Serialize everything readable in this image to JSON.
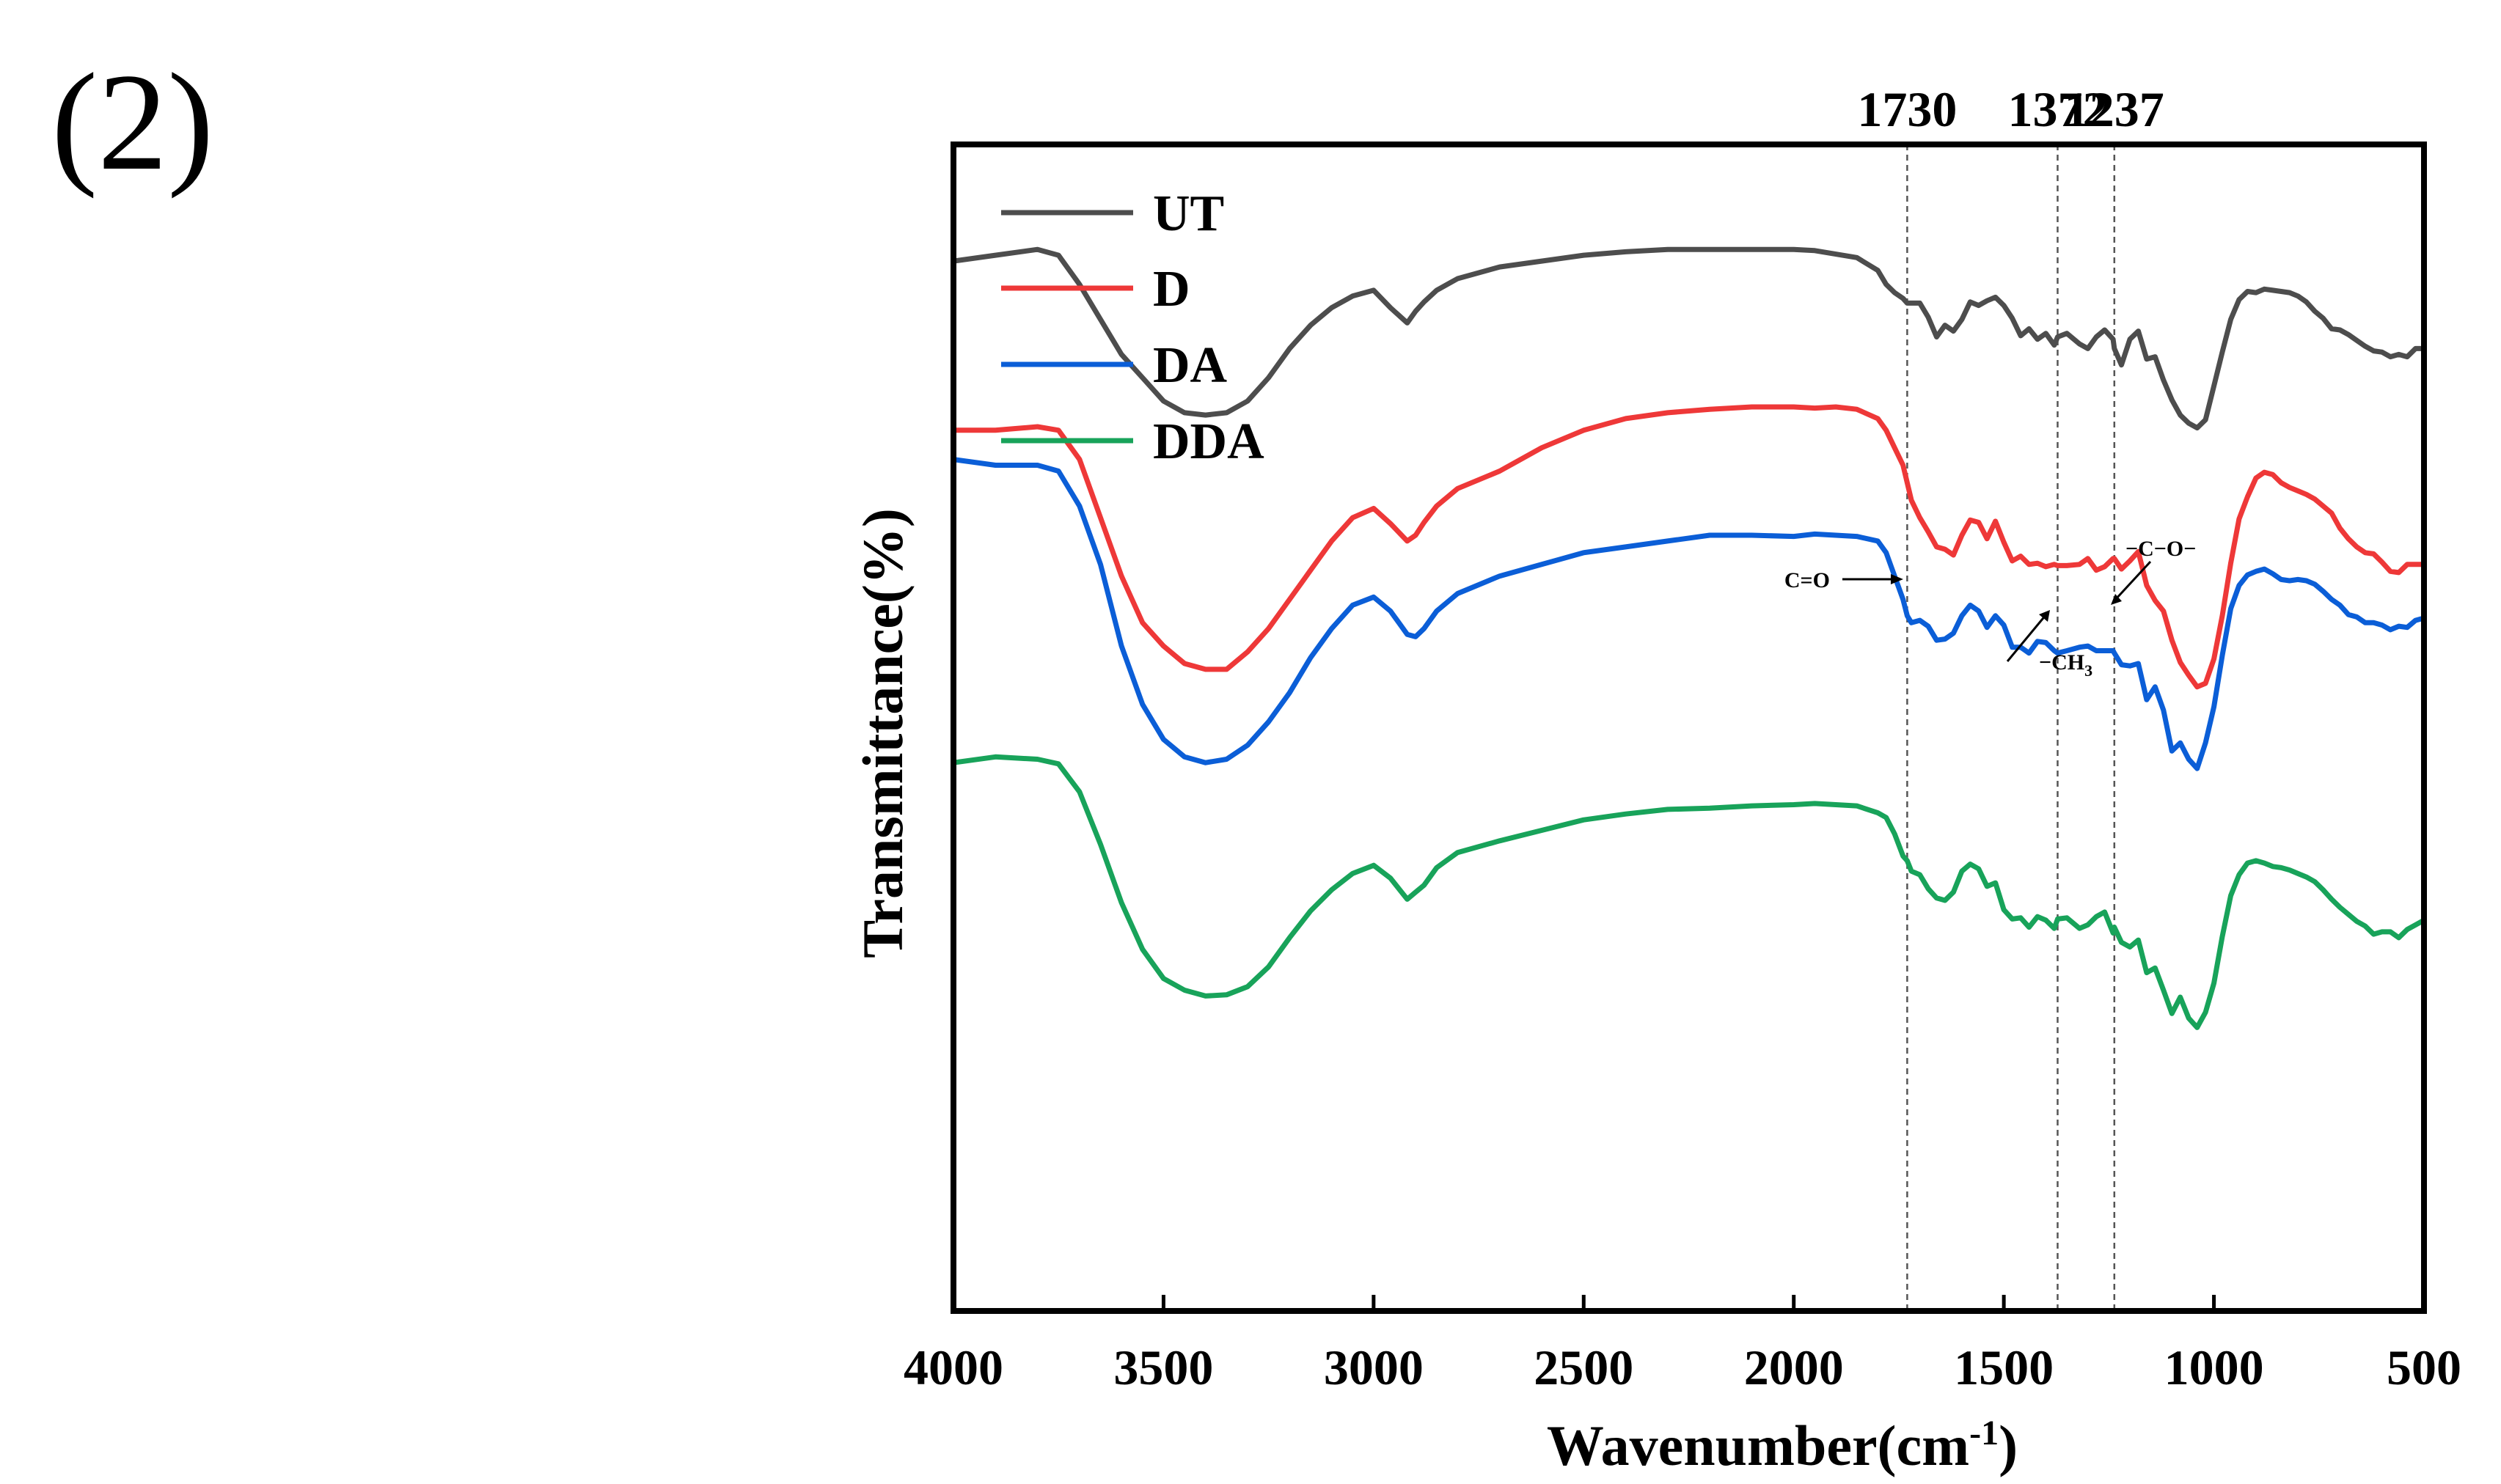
{
  "panel_label": "(2)",
  "chart_data": {
    "type": "line",
    "title": "",
    "xlabel": "Wavenumber(cm",
    "xlabel_sup": "-1",
    "xlabel_suffix": ")",
    "ylabel": "Transmittance(%)",
    "xlim": [
      4000,
      500
    ],
    "x_reversed": true,
    "xticks": [
      "4000",
      "3500",
      "3000",
      "2500",
      "2000",
      "1500",
      "1000",
      "500"
    ],
    "ylim": [
      0,
      100
    ],
    "y_ticks_shown": false,
    "grid": false,
    "legend_position": "top-left",
    "reference_lines": [
      {
        "x": 1730,
        "label": "1730"
      },
      {
        "x": 1372,
        "label": "1372"
      },
      {
        "x": 1237,
        "label": "1237"
      }
    ],
    "annotations": [
      {
        "text": "C=O",
        "x": 1730,
        "series": "UT"
      },
      {
        "text": "−CH",
        "sub": "3",
        "x": 1372,
        "series": "UT"
      },
      {
        "text": "−C−O−",
        "x": 1237,
        "series": "UT"
      }
    ],
    "x": [
      4000,
      3900,
      3800,
      3750,
      3700,
      3650,
      3600,
      3550,
      3500,
      3450,
      3400,
      3350,
      3300,
      3250,
      3200,
      3150,
      3100,
      3050,
      3000,
      2960,
      2920,
      2900,
      2880,
      2850,
      2800,
      2700,
      2600,
      2500,
      2400,
      2300,
      2200,
      2100,
      2000,
      1950,
      1900,
      1850,
      1800,
      1780,
      1760,
      1740,
      1730,
      1720,
      1700,
      1680,
      1660,
      1640,
      1620,
      1600,
      1580,
      1560,
      1540,
      1520,
      1500,
      1480,
      1460,
      1440,
      1420,
      1400,
      1380,
      1372,
      1350,
      1320,
      1300,
      1280,
      1260,
      1240,
      1237,
      1220,
      1200,
      1180,
      1160,
      1140,
      1120,
      1100,
      1080,
      1060,
      1040,
      1020,
      1000,
      980,
      960,
      940,
      920,
      900,
      880,
      860,
      840,
      820,
      800,
      780,
      760,
      740,
      720,
      700,
      680,
      660,
      640,
      620,
      600,
      580,
      560,
      540,
      520,
      500
    ],
    "series": [
      {
        "name": "UT",
        "color": "#4d4d4d",
        "values": [
          90,
          90.5,
          91,
          90.5,
          88,
          85,
          82,
          80,
          78,
          77,
          76.8,
          77,
          78,
          80,
          82.5,
          84.5,
          86,
          87,
          87.5,
          86,
          84.7,
          85.7,
          86.5,
          87.5,
          88.5,
          89.5,
          90,
          90.5,
          90.8,
          91,
          91,
          91,
          91,
          90.9,
          90.6,
          90.3,
          89.2,
          88,
          87.3,
          86.8,
          86.4,
          86.4,
          86.4,
          85.2,
          83.5,
          84.5,
          84,
          85,
          86.5,
          86.2,
          86.6,
          86.9,
          86.2,
          85.1,
          83.6,
          84.2,
          83.3,
          83.8,
          82.8,
          83.5,
          83.8,
          82.9,
          82.5,
          83.5,
          84.1,
          83.3,
          82.5,
          81.1,
          83.3,
          84,
          81.6,
          81.8,
          79.8,
          78.1,
          76.8,
          76.1,
          75.7,
          76.4,
          79.3,
          82.2,
          85,
          86.7,
          87.4,
          87.3,
          87.6,
          87.5,
          87.4,
          87.3,
          87,
          86.5,
          85.7,
          85.1,
          84.2,
          84.1,
          83.7,
          83.2,
          82.7,
          82.3,
          82.2,
          81.8,
          82,
          81.8,
          82.5,
          82.5
        ]
      },
      {
        "name": "D",
        "color": "#ee3838",
        "values": [
          75.5,
          75.5,
          75.8,
          75.5,
          73,
          68,
          63,
          59,
          57,
          55.5,
          55,
          55,
          56.5,
          58.5,
          61,
          63.5,
          66,
          68,
          68.8,
          67.5,
          66,
          66.5,
          67.6,
          69,
          70.5,
          72,
          74,
          75.5,
          76.5,
          77,
          77.3,
          77.5,
          77.5,
          77.4,
          77.5,
          77.3,
          76.5,
          75.5,
          74,
          72.5,
          71,
          69.5,
          68,
          66.8,
          65.5,
          65.3,
          64.8,
          66.5,
          67.8,
          67.6,
          66.2,
          67.7,
          65.9,
          64.3,
          64.7,
          64,
          64.1,
          63.8,
          64,
          63.9,
          63.9,
          64,
          64.5,
          63.5,
          63.8,
          64.5,
          64.5,
          63.6,
          64.3,
          65.1,
          62.2,
          60.9,
          60,
          57.5,
          55.6,
          54.5,
          53.5,
          53.8,
          55.9,
          59.6,
          64.1,
          67.9,
          69.8,
          71.4,
          71.9,
          71.7,
          71,
          70.6,
          70.3,
          70,
          69.6,
          69,
          68.4,
          67.1,
          66.2,
          65.5,
          65,
          64.9,
          64.2,
          63.4,
          63.3,
          64,
          64,
          64
        ]
      },
      {
        "name": "DA",
        "color": "#0b5ed7",
        "values": [
          73,
          72.5,
          72.5,
          72,
          69,
          64,
          57,
          52,
          49,
          47.5,
          47,
          47.3,
          48.5,
          50.5,
          53,
          56,
          58.5,
          60.5,
          61.2,
          60,
          58,
          57.8,
          58.5,
          60,
          61.5,
          63,
          64,
          65,
          65.5,
          66,
          66.5,
          66.5,
          66.4,
          66.6,
          66.5,
          66.4,
          66,
          65,
          63,
          61,
          59.6,
          59,
          59.2,
          58.7,
          57.5,
          57.6,
          58.1,
          59.6,
          60.5,
          60,
          58.6,
          59.6,
          58.8,
          56.9,
          56.9,
          56.4,
          57.4,
          57.3,
          56.6,
          56.4,
          56.6,
          56.9,
          57,
          56.6,
          56.6,
          56.6,
          56.4,
          55.4,
          55.3,
          55.5,
          52.4,
          53.5,
          51.5,
          48,
          48.7,
          47.3,
          46.5,
          48.7,
          51.8,
          56.2,
          60.2,
          62.2,
          63.1,
          63.4,
          63.6,
          63.2,
          62.7,
          62.6,
          62.7,
          62.6,
          62.3,
          61.7,
          61,
          60.5,
          59.7,
          59.5,
          59,
          59,
          58.8,
          58.4,
          58.7,
          58.6,
          59.2,
          59.4
        ]
      },
      {
        "name": "DDA",
        "color": "#18a35a",
        "values": [
          47,
          47.5,
          47.3,
          46.9,
          44.5,
          40,
          35,
          31,
          28.5,
          27.5,
          27,
          27.1,
          27.8,
          29.5,
          32,
          34.3,
          36.1,
          37.5,
          38.2,
          37.1,
          35.3,
          35.9,
          36.5,
          38,
          39.3,
          40.3,
          41.2,
          42.1,
          42.6,
          43,
          43.1,
          43.3,
          43.4,
          43.5,
          43.4,
          43.3,
          42.7,
          42.3,
          40.9,
          39,
          38.6,
          37.7,
          37.4,
          36.2,
          35.4,
          35.2,
          35.9,
          37.7,
          38.3,
          37.9,
          36.4,
          36.7,
          34.4,
          33.6,
          33.7,
          32.9,
          33.8,
          33.5,
          32.8,
          33.6,
          33.7,
          32.8,
          33.1,
          33.8,
          34.2,
          32.4,
          32.9,
          31.6,
          31.2,
          31.8,
          29,
          29.4,
          27.5,
          25.5,
          26.9,
          25.1,
          24.3,
          25.6,
          28.1,
          32.1,
          35.6,
          37.4,
          38.4,
          38.6,
          38.4,
          38.1,
          38,
          37.8,
          37.5,
          37.2,
          36.8,
          36.1,
          35.3,
          34.6,
          34,
          33.4,
          33,
          32.3,
          32.5,
          32.5,
          32,
          32.7,
          33.1,
          33.5
        ]
      }
    ]
  }
}
